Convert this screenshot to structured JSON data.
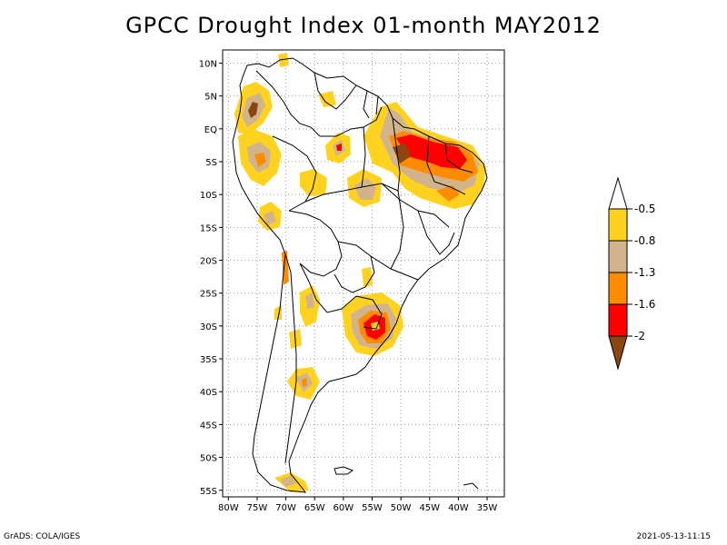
{
  "title": "GPCC Drought Index 01-month MAY2012",
  "axes": {
    "lat_labels": [
      "10N",
      "5N",
      "EQ",
      "5S",
      "10S",
      "15S",
      "20S",
      "25S",
      "30S",
      "35S",
      "40S",
      "45S",
      "50S",
      "55S"
    ],
    "lon_labels": [
      "80W",
      "75W",
      "70W",
      "65W",
      "60W",
      "55W",
      "50W",
      "45W",
      "40W",
      "35W"
    ],
    "lon_range": [
      -81,
      -32
    ],
    "lat_range": [
      -56,
      12
    ]
  },
  "colorbar": {
    "labels": [
      "-0.5",
      "-0.8",
      "-1.3",
      "-1.6",
      "-2"
    ],
    "colors": [
      "#ffffff",
      "#ffd21f",
      "#d2b48c",
      "#ff8c00",
      "#ff0000",
      "#8b4513"
    ]
  },
  "footer": {
    "left": "GrADS: COLA/IGES",
    "right": "2021-05-13-11:15"
  }
}
